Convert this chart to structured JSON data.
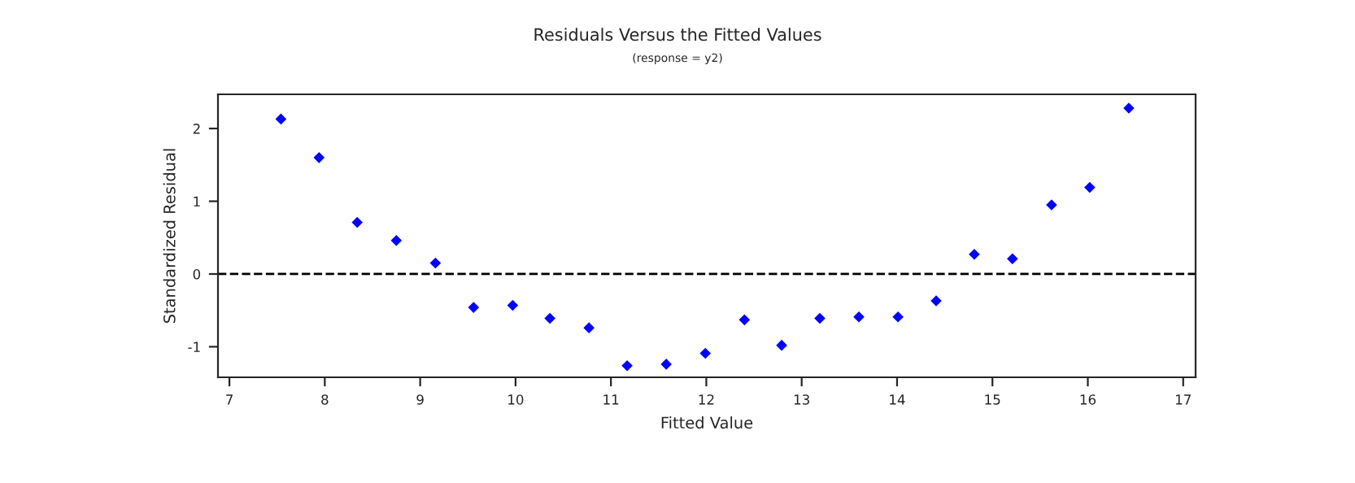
{
  "chart_data": {
    "type": "scatter",
    "title": "Residuals Versus the Fitted Values",
    "subtitle": "(response = y2)",
    "xlabel": "Fitted Value",
    "ylabel": "Standardized Residual",
    "x": [
      7.54,
      7.94,
      8.34,
      8.75,
      9.16,
      9.56,
      9.97,
      10.36,
      10.77,
      11.17,
      11.58,
      11.99,
      12.4,
      12.79,
      13.19,
      13.6,
      14.01,
      14.41,
      14.81,
      15.21,
      15.62,
      16.02,
      16.43
    ],
    "series": [
      {
        "color": "#0000ff",
        "values": [
          2.13,
          1.6,
          0.71,
          0.46,
          0.15,
          -0.46,
          -0.43,
          -0.61,
          -0.74,
          -1.26,
          -1.24,
          -1.09,
          -0.63,
          -0.98,
          -0.61,
          -0.59,
          -0.59,
          -0.37,
          0.27,
          0.21,
          0.95,
          1.19,
          2.28
        ]
      }
    ],
    "marker": "diamond",
    "xlim": [
      6.88,
      17.13
    ],
    "xticks": [
      7,
      8,
      9,
      10,
      11,
      12,
      13,
      14,
      15,
      16,
      17
    ],
    "ylim": [
      -1.42,
      2.47
    ],
    "yticks": [
      -1,
      0,
      1,
      2
    ],
    "ref_lines": [
      {
        "axis": "y",
        "value": 0,
        "color": "#000000",
        "line_style": "dashed"
      }
    ],
    "grid": false,
    "legend": false
  }
}
